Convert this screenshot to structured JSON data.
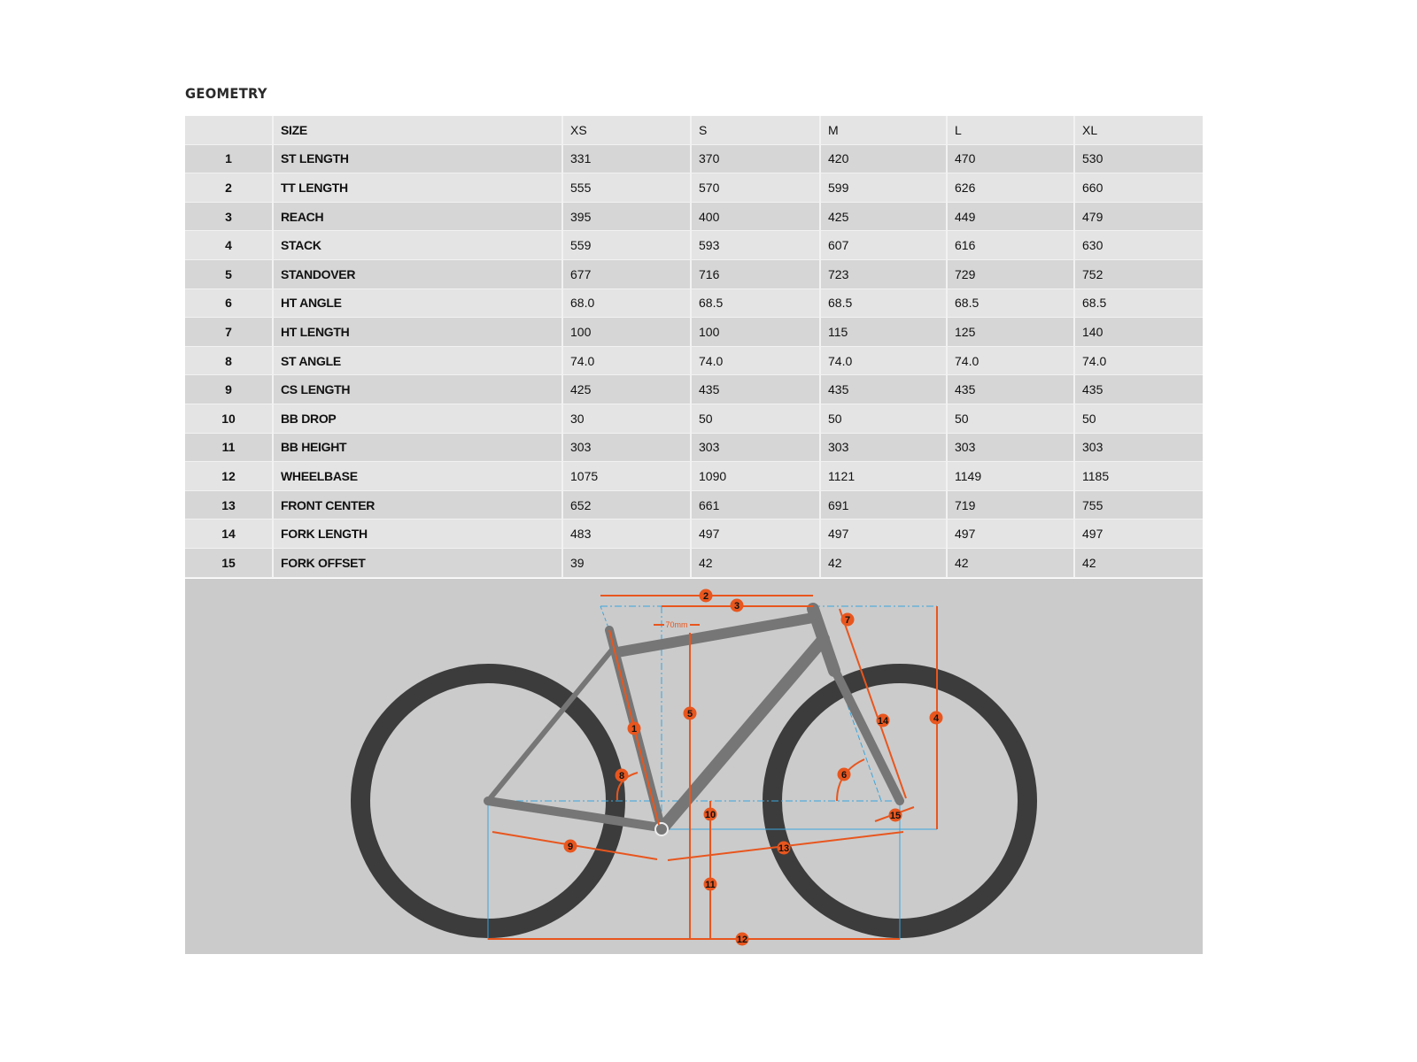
{
  "title": "GEOMETRY",
  "table": {
    "header": [
      "",
      "SIZE",
      "XS",
      "S",
      "M",
      "L",
      "XL"
    ],
    "rows": [
      {
        "num": "1",
        "label": "ST LENGTH",
        "values": [
          "331",
          "370",
          "420",
          "470",
          "530"
        ]
      },
      {
        "num": "2",
        "label": "TT LENGTH",
        "values": [
          "555",
          "570",
          "599",
          "626",
          "660"
        ]
      },
      {
        "num": "3",
        "label": "REACH",
        "values": [
          "395",
          "400",
          "425",
          "449",
          "479"
        ]
      },
      {
        "num": "4",
        "label": "STACK",
        "values": [
          "559",
          "593",
          "607",
          "616",
          "630"
        ]
      },
      {
        "num": "5",
        "label": "STANDOVER",
        "values": [
          "677",
          "716",
          "723",
          "729",
          "752"
        ]
      },
      {
        "num": "6",
        "label": "HT ANGLE",
        "values": [
          "68.0",
          "68.5",
          "68.5",
          "68.5",
          "68.5"
        ]
      },
      {
        "num": "7",
        "label": "HT LENGTH",
        "values": [
          "100",
          "100",
          "115",
          "125",
          "140"
        ]
      },
      {
        "num": "8",
        "label": "ST ANGLE",
        "values": [
          "74.0",
          "74.0",
          "74.0",
          "74.0",
          "74.0"
        ]
      },
      {
        "num": "9",
        "label": "CS LENGTH",
        "values": [
          "425",
          "435",
          "435",
          "435",
          "435"
        ]
      },
      {
        "num": "10",
        "label": "BB DROP",
        "values": [
          "30",
          "50",
          "50",
          "50",
          "50"
        ]
      },
      {
        "num": "11",
        "label": "BB HEIGHT",
        "values": [
          "303",
          "303",
          "303",
          "303",
          "303"
        ]
      },
      {
        "num": "12",
        "label": "WHEELBASE",
        "values": [
          "1075",
          "1090",
          "1121",
          "1149",
          "1185"
        ]
      },
      {
        "num": "13",
        "label": "FRONT CENTER",
        "values": [
          "652",
          "661",
          "691",
          "719",
          "755"
        ]
      },
      {
        "num": "14",
        "label": "FORK LENGTH",
        "values": [
          "483",
          "497",
          "497",
          "497",
          "497"
        ]
      },
      {
        "num": "15",
        "label": "FORK OFFSET",
        "values": [
          "39",
          "42",
          "42",
          "42",
          "42"
        ]
      }
    ]
  },
  "diagram": {
    "offset_label": "70mm",
    "markers": [
      "1",
      "2",
      "3",
      "4",
      "5",
      "6",
      "7",
      "8",
      "9",
      "10",
      "11",
      "12",
      "13",
      "14",
      "15"
    ],
    "colors": {
      "measure": "#e8561e",
      "guide": "#3aa6dc",
      "frame": "#767676",
      "tire": "#3c3c3c",
      "background": "#cbcbcb"
    }
  }
}
